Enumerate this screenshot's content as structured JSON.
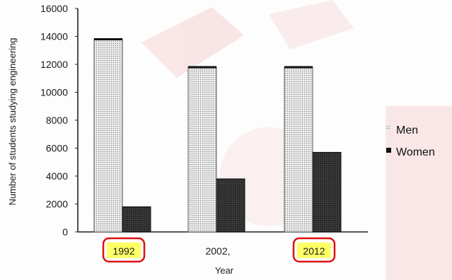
{
  "chart_data": {
    "type": "bar",
    "categories": [
      "1992",
      "2002",
      "2012"
    ],
    "series": [
      {
        "name": "Men",
        "values": [
          13800,
          11800,
          11800
        ],
        "color": "#dcdcdc"
      },
      {
        "name": "Women",
        "values": [
          1800,
          3800,
          5700
        ],
        "color": "#2b2b2b"
      }
    ],
    "ylabel": "Number of students studying engineering",
    "xlabel": "Year",
    "ylim": [
      0,
      16000
    ],
    "yticks": [
      "0",
      "2000",
      "4000",
      "6000",
      "8000",
      "10000",
      "12000",
      "14000",
      "16000"
    ],
    "category_labels": [
      "1992",
      "2002,",
      "2012"
    ],
    "legend_position": "right",
    "grid": false,
    "highlighted_categories": [
      "1992",
      "2012"
    ],
    "highlight_color": "#ffff66",
    "highlight_border_color": "#e01010",
    "watermark_color": "#f3caca"
  }
}
